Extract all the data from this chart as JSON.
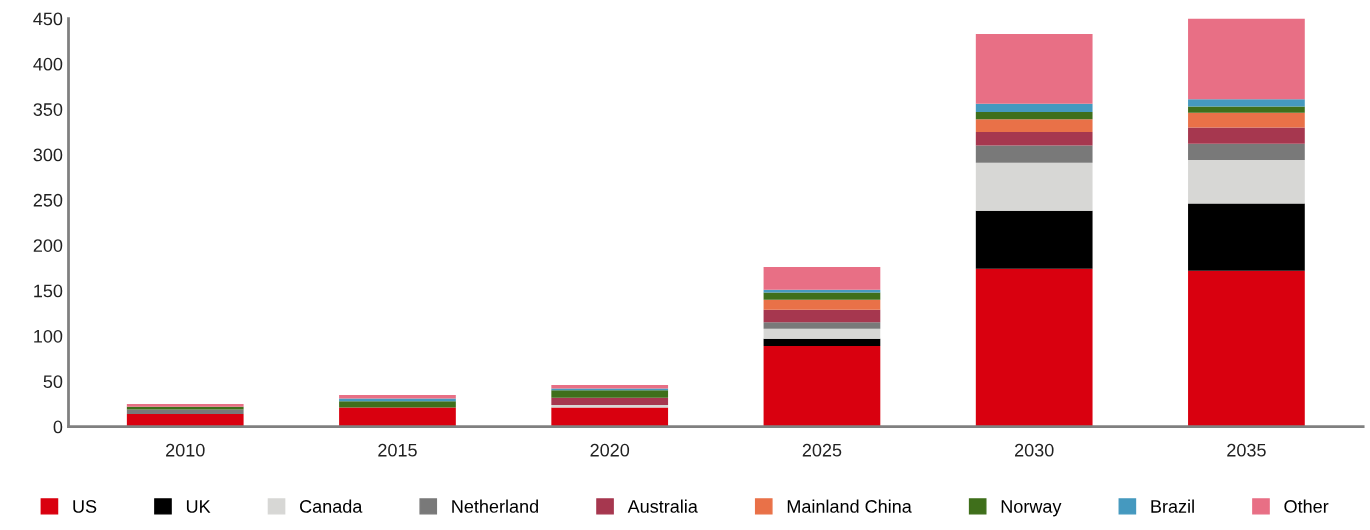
{
  "chart_data": {
    "type": "bar",
    "stacked": true,
    "categories": [
      "2010",
      "2015",
      "2020",
      "2025",
      "2030",
      "2035"
    ],
    "series": [
      {
        "name": "US",
        "color": "#d9000f",
        "values": [
          14,
          21,
          21,
          89,
          174,
          172
        ]
      },
      {
        "name": "UK",
        "color": "#000000",
        "values": [
          0,
          0,
          0,
          8,
          64,
          74
        ]
      },
      {
        "name": "Canada",
        "color": "#d7d7d5",
        "values": [
          0,
          0,
          3,
          11,
          53,
          48
        ]
      },
      {
        "name": "Netherland",
        "color": "#797979",
        "values": [
          5,
          0,
          0,
          7,
          19,
          18
        ]
      },
      {
        "name": "Australia",
        "color": "#a6374f",
        "values": [
          0,
          0,
          8,
          14,
          15,
          18
        ]
      },
      {
        "name": "Mainland China",
        "color": "#e97148",
        "values": [
          0,
          0,
          0,
          11,
          14,
          16
        ]
      },
      {
        "name": "Norway",
        "color": "#3f6f1b",
        "values": [
          3,
          7,
          8,
          8,
          8,
          7
        ]
      },
      {
        "name": "Brazil",
        "color": "#4599bf",
        "values": [
          0,
          3,
          2,
          3,
          9,
          8
        ]
      },
      {
        "name": "Other",
        "color": "#e86f85",
        "values": [
          3,
          4,
          4,
          25,
          77,
          89
        ]
      }
    ],
    "ylim": [
      0,
      450
    ],
    "yticks": [
      0,
      50,
      100,
      150,
      200,
      250,
      300,
      350,
      400,
      450
    ],
    "grid": false,
    "legend": "bottom"
  }
}
